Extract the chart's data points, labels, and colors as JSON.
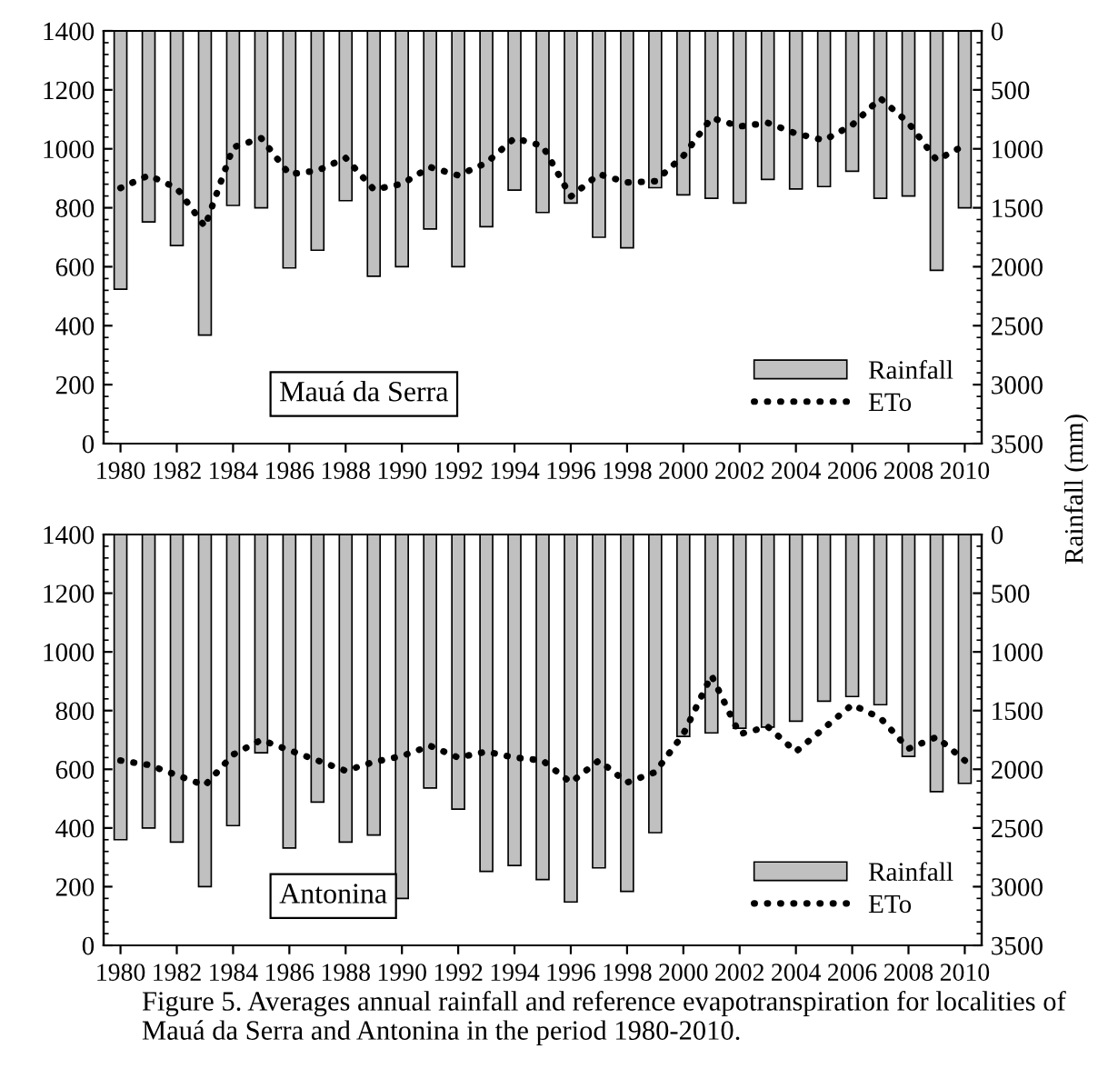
{
  "chart_data": [
    {
      "type": "bar",
      "categories": [
        "1980",
        null,
        "1982",
        null,
        "1984",
        null,
        "1986",
        null,
        "1988",
        null,
        "1990",
        null,
        "1992",
        null,
        "1994",
        null,
        "1996",
        null,
        "1998",
        null,
        "2000",
        null,
        "2002",
        null,
        "2004",
        null,
        "2006",
        null,
        "2008",
        null,
        "2010"
      ],
      "series": [
        {
          "name": "Rainfall",
          "axis": "y2",
          "color": "#c0c0c0",
          "values": [
            2190,
            1620,
            1820,
            2580,
            1480,
            1500,
            2010,
            1860,
            1440,
            2080,
            2000,
            1680,
            2000,
            1660,
            1350,
            1540,
            1460,
            1750,
            1840,
            1330,
            1390,
            1420,
            1460,
            1260,
            1340,
            1320,
            1190,
            1420,
            1400,
            2030,
            1500
          ]
        },
        {
          "name": "ETo",
          "type": "line",
          "color": "#000000",
          "line_style": "dotted",
          "values": [
            867,
            910,
            867,
            736,
            1005,
            1036,
            914,
            926,
            969,
            862,
            881,
            938,
            910,
            952,
            1036,
            1010,
            838,
            914,
            886,
            890,
            976,
            1105,
            1076,
            1088,
            1052,
            1029,
            1081,
            1171,
            1088,
            962,
            1012
          ]
        }
      ],
      "ylim": [
        0,
        1400
      ],
      "yticks": [
        0,
        200,
        400,
        600,
        800,
        1000,
        1200,
        1400
      ],
      "y2lim": [
        3500,
        0
      ],
      "y2ticks": [
        0,
        500,
        1000,
        1500,
        2000,
        2500,
        3000,
        3500
      ],
      "y2label": "Rainfall (mm)",
      "legend": "bottom right",
      "grid": false,
      "annotations": [
        "Mauá da Serra"
      ]
    },
    {
      "type": "bar",
      "categories": [
        "1980",
        null,
        "1982",
        null,
        "1984",
        null,
        "1986",
        null,
        "1988",
        null,
        "1990",
        null,
        "1992",
        null,
        "1994",
        null,
        "1996",
        null,
        "1998",
        null,
        "2000",
        null,
        "2002",
        null,
        "2004",
        null,
        "2006",
        null,
        "2008",
        null,
        "2010"
      ],
      "series": [
        {
          "name": "Rainfall",
          "axis": "y2",
          "color": "#c0c0c0",
          "values": [
            2600,
            2500,
            2620,
            3000,
            2480,
            1860,
            2670,
            2280,
            2620,
            2560,
            3100,
            2160,
            2340,
            2870,
            2820,
            2940,
            3130,
            2840,
            3040,
            2540,
            1720,
            1690,
            1650,
            1640,
            1590,
            1420,
            1380,
            1450,
            1890,
            2190,
            2120
          ]
        },
        {
          "name": "ETo",
          "type": "line",
          "color": "#000000",
          "line_style": "dotted",
          "values": [
            630,
            615,
            580,
            545,
            650,
            700,
            665,
            630,
            595,
            625,
            645,
            680,
            640,
            660,
            640,
            630,
            555,
            630,
            555,
            590,
            720,
            920,
            720,
            745,
            660,
            740,
            820,
            775,
            670,
            710,
            630
          ]
        }
      ],
      "ylim": [
        0,
        1400
      ],
      "yticks": [
        0,
        200,
        400,
        600,
        800,
        1000,
        1200,
        1400
      ],
      "y2lim": [
        3500,
        0
      ],
      "y2ticks": [
        0,
        500,
        1000,
        1500,
        2000,
        2500,
        3000,
        3500
      ],
      "legend": "bottom right",
      "grid": false,
      "annotations": [
        "Antonina",
        "Figure 5. Averages annual rainfall and reference evapotranspiration for localities of Mauá da Serra and Antonina in the period 1980-2010."
      ]
    }
  ]
}
